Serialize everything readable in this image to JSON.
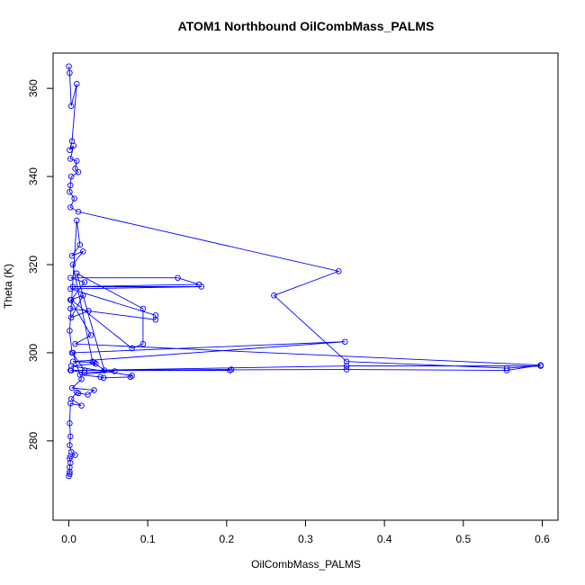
{
  "chart_data": {
    "type": "line",
    "title": "ATOM1 Northbound OilCombMass_PALMS",
    "xlabel": "OilCombMass_PALMS",
    "ylabel": "Theta (K)",
    "xlim": [
      -0.02,
      0.62
    ],
    "ylim": [
      262,
      368
    ],
    "x_ticks": [
      0.0,
      0.1,
      0.2,
      0.3,
      0.4,
      0.5,
      0.6
    ],
    "x_tick_labels": [
      "0.0",
      "0.1",
      "0.2",
      "0.3",
      "0.4",
      "0.5",
      "0.6"
    ],
    "y_ticks": [
      280,
      300,
      320,
      340,
      360
    ],
    "y_tick_labels": [
      "280",
      "300",
      "320",
      "340",
      "360"
    ],
    "grid": false,
    "series_color": "#0000ff",
    "series": [
      {
        "points": [
          [
            0.0,
            365.0
          ],
          [
            0.001,
            363.5
          ],
          [
            0.003,
            356.0
          ],
          [
            0.01,
            361.0
          ],
          [
            0.004,
            348.0
          ],
          [
            0.001,
            346.0
          ],
          [
            0.006,
            347.0
          ],
          [
            0.002,
            344.0
          ],
          [
            0.01,
            343.5
          ],
          [
            0.008,
            341.8
          ],
          [
            0.012,
            341.0
          ],
          [
            0.003,
            340.0
          ],
          [
            0.002,
            338.0
          ],
          [
            0.001,
            336.5
          ],
          [
            0.007,
            335.0
          ],
          [
            0.002,
            333.0
          ],
          [
            0.012,
            332.0
          ],
          [
            0.342,
            318.5
          ],
          [
            0.26,
            313.0
          ],
          [
            0.352,
            298.0
          ],
          [
            0.555,
            296.5
          ],
          [
            0.598,
            297.0
          ],
          [
            0.352,
            297.0
          ],
          [
            0.02,
            296.0
          ],
          [
            0.004,
            300.0
          ],
          [
            0.001,
            305.0
          ],
          [
            0.01,
            330.0
          ],
          [
            0.014,
            324.5
          ],
          [
            0.004,
            322.0
          ],
          [
            0.018,
            323.0
          ],
          [
            0.005,
            320.0
          ],
          [
            0.03,
            298.0
          ],
          [
            0.045,
            296.0
          ],
          [
            0.01,
            318.0
          ],
          [
            0.094,
            310.0
          ],
          [
            0.094,
            302.0
          ],
          [
            0.08,
            301.0
          ],
          [
            0.003,
            312.0
          ],
          [
            0.02,
            316.0
          ],
          [
            0.002,
            317.0
          ],
          [
            0.138,
            317.0
          ],
          [
            0.165,
            315.5
          ],
          [
            0.005,
            315.0
          ],
          [
            0.168,
            315.0
          ],
          [
            0.002,
            314.5
          ],
          [
            0.11,
            308.5
          ],
          [
            0.11,
            307.5
          ],
          [
            0.002,
            310.0
          ],
          [
            0.025,
            309.5
          ],
          [
            0.003,
            308.0
          ],
          [
            0.018,
            313.0
          ],
          [
            0.002,
            312.0
          ],
          [
            0.028,
            304.0
          ],
          [
            0.008,
            302.0
          ],
          [
            0.598,
            297.2
          ],
          [
            0.555,
            296.0
          ],
          [
            0.352,
            296.2
          ],
          [
            0.003,
            296.0
          ],
          [
            0.206,
            296.2
          ],
          [
            0.204,
            296.0
          ],
          [
            0.002,
            296.0
          ],
          [
            0.02,
            295.5
          ],
          [
            0.058,
            295.8
          ],
          [
            0.014,
            295.0
          ],
          [
            0.04,
            294.5
          ],
          [
            0.044,
            294.3
          ],
          [
            0.078,
            294.5
          ],
          [
            0.08,
            294.8
          ],
          [
            0.003,
            297.0
          ],
          [
            0.034,
            297.5
          ],
          [
            0.032,
            297.8
          ],
          [
            0.005,
            298.0
          ],
          [
            0.35,
            302.5
          ],
          [
            0.005,
            300.0
          ],
          [
            0.016,
            294.0
          ],
          [
            0.004,
            292.0
          ],
          [
            0.032,
            291.5
          ],
          [
            0.024,
            290.5
          ],
          [
            0.012,
            290.8
          ],
          [
            0.01,
            291.0
          ],
          [
            0.003,
            289.5
          ],
          [
            0.016,
            288.0
          ],
          [
            0.002,
            288.5
          ],
          [
            0.001,
            284.0
          ],
          [
            0.002,
            281.0
          ],
          [
            0.001,
            279.0
          ],
          [
            0.003,
            277.5
          ],
          [
            0.008,
            276.8
          ],
          [
            0.002,
            276.5
          ],
          [
            0.001,
            276.0
          ],
          [
            0.002,
            275.0
          ],
          [
            0.001,
            274.0
          ],
          [
            0.001,
            273.0
          ],
          [
            0.001,
            272.5
          ],
          [
            0.0,
            272.0
          ]
        ]
      }
    ]
  }
}
